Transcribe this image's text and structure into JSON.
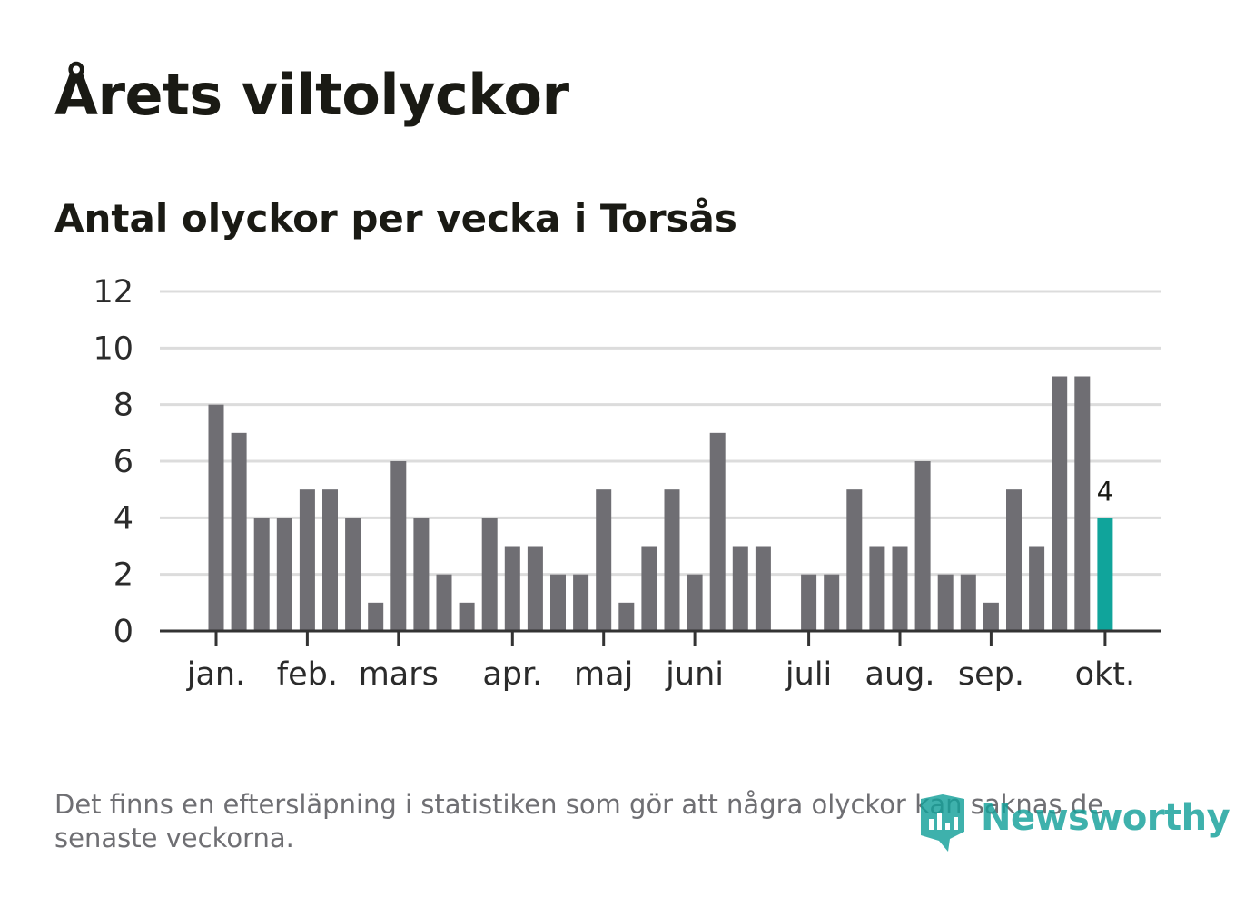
{
  "title": "Årets viltolyckor",
  "subtitle": "Antal olyckor per vecka i Torsås",
  "footnote": "Det finns en eftersläpning i statistiken som gör att några olyckor kan saknas de senaste veckorna.",
  "logo": {
    "text": "Newsworthy",
    "color": "#14a09a"
  },
  "chart_data": {
    "type": "bar",
    "title": "Antal olyckor per vecka i Torsås",
    "xlabel": "",
    "ylabel": "",
    "ylim": [
      0,
      12
    ],
    "yticks": [
      0,
      2,
      4,
      6,
      8,
      10,
      12
    ],
    "grid": true,
    "bar_color": "#6f6e73",
    "highlight_color": "#10a49b",
    "highlight_index": 39,
    "highlight_label": "4",
    "weeks": [
      1,
      2,
      3,
      4,
      5,
      6,
      7,
      8,
      9,
      10,
      11,
      12,
      13,
      14,
      15,
      16,
      17,
      18,
      19,
      20,
      21,
      22,
      23,
      24,
      25,
      26,
      27,
      28,
      29,
      30,
      31,
      32,
      33,
      34,
      35,
      36,
      37,
      38,
      39,
      40
    ],
    "values": [
      8,
      7,
      4,
      4,
      5,
      5,
      4,
      1,
      6,
      4,
      2,
      1,
      4,
      3,
      3,
      2,
      2,
      5,
      1,
      3,
      5,
      2,
      7,
      3,
      3,
      0,
      2,
      2,
      5,
      3,
      3,
      6,
      2,
      2,
      1,
      5,
      3,
      9,
      9,
      4
    ],
    "month_ticks": [
      {
        "label": "jan.",
        "week": 1
      },
      {
        "label": "feb.",
        "week": 5
      },
      {
        "label": "mars",
        "week": 9
      },
      {
        "label": "apr.",
        "week": 14
      },
      {
        "label": "maj",
        "week": 18
      },
      {
        "label": "juni",
        "week": 22
      },
      {
        "label": "juli",
        "week": 27
      },
      {
        "label": "aug.",
        "week": 31
      },
      {
        "label": "sep.",
        "week": 35
      },
      {
        "label": "okt.",
        "week": 40
      }
    ]
  }
}
